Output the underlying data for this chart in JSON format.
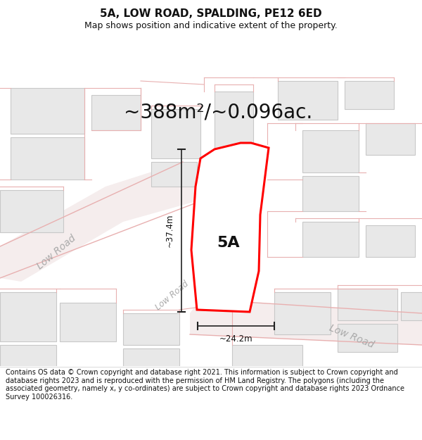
{
  "title": "5A, LOW ROAD, SPALDING, PE12 6ED",
  "subtitle": "Map shows position and indicative extent of the property.",
  "area_text": "~388m²/~0.096ac.",
  "label_5A": "5A",
  "dim_width": "~24.2m",
  "dim_height": "~37.4m",
  "footer": "Contains OS data © Crown copyright and database right 2021. This information is subject to Crown copyright and database rights 2023 and is reproduced with the permission of HM Land Registry. The polygons (including the associated geometry, namely x, y co-ordinates) are subject to Crown copyright and database rights 2023 Ordnance Survey 100026316.",
  "map_bg": "#ffffff",
  "road_fill": "#f5eded",
  "road_line": "#e8b0b0",
  "bldg_fill": "#e8e8e8",
  "bldg_line": "#c8c8c8",
  "prop_line": "#ff0000",
  "prop_fill": "#ffffff",
  "dim_line": "#222222",
  "road_label": "#aaaaaa",
  "title_fontsize": 11,
  "subtitle_fontsize": 9,
  "area_fontsize": 20,
  "label_fontsize": 16,
  "footer_fontsize": 7.0,
  "dim_fontsize": 8.5,
  "road_label_fontsize": 10
}
